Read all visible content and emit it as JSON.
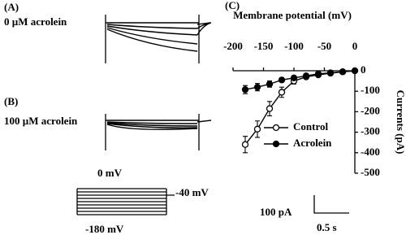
{
  "panels": {
    "a_label": "(A)",
    "a_title": "0 µM acrolein",
    "b_label": "(B)",
    "b_title": "100 µM acrolein",
    "c_label": "(C)",
    "protocol_top": "0 mV",
    "protocol_hold": "-40 mV",
    "protocol_bottom": "-180 mV",
    "scale_current": "100 pA",
    "scale_time": "0.5 s"
  },
  "chart_data": {
    "type": "line",
    "x_label": "Membrane potential (mV)",
    "y_label": "Currents (pA)",
    "x": [
      -180,
      -160,
      -140,
      -120,
      -100,
      -80,
      -60,
      -40,
      -20,
      0
    ],
    "series": [
      {
        "name": "Control",
        "color": "#000000",
        "fill": "#ffffff",
        "values": [
          -360,
          -285,
          -185,
          -105,
          -50,
          -30,
          -20,
          -12,
          -5,
          0
        ],
        "errors": [
          40,
          40,
          35,
          25,
          15,
          6,
          5,
          4,
          3,
          2
        ]
      },
      {
        "name": "Acrolein",
        "color": "#000000",
        "fill": "#000000",
        "values": [
          -92,
          -80,
          -65,
          -45,
          -35,
          -25,
          -15,
          -10,
          -5,
          0
        ],
        "errors": [
          20,
          18,
          15,
          10,
          8,
          6,
          5,
          4,
          3,
          2
        ]
      }
    ],
    "xlim": [
      -200,
      0
    ],
    "xticks": [
      -200,
      -150,
      -100,
      -50,
      0
    ],
    "ylim": [
      -500,
      0
    ],
    "yticks": [
      0,
      -100,
      -200,
      -300,
      -400,
      -500
    ]
  }
}
